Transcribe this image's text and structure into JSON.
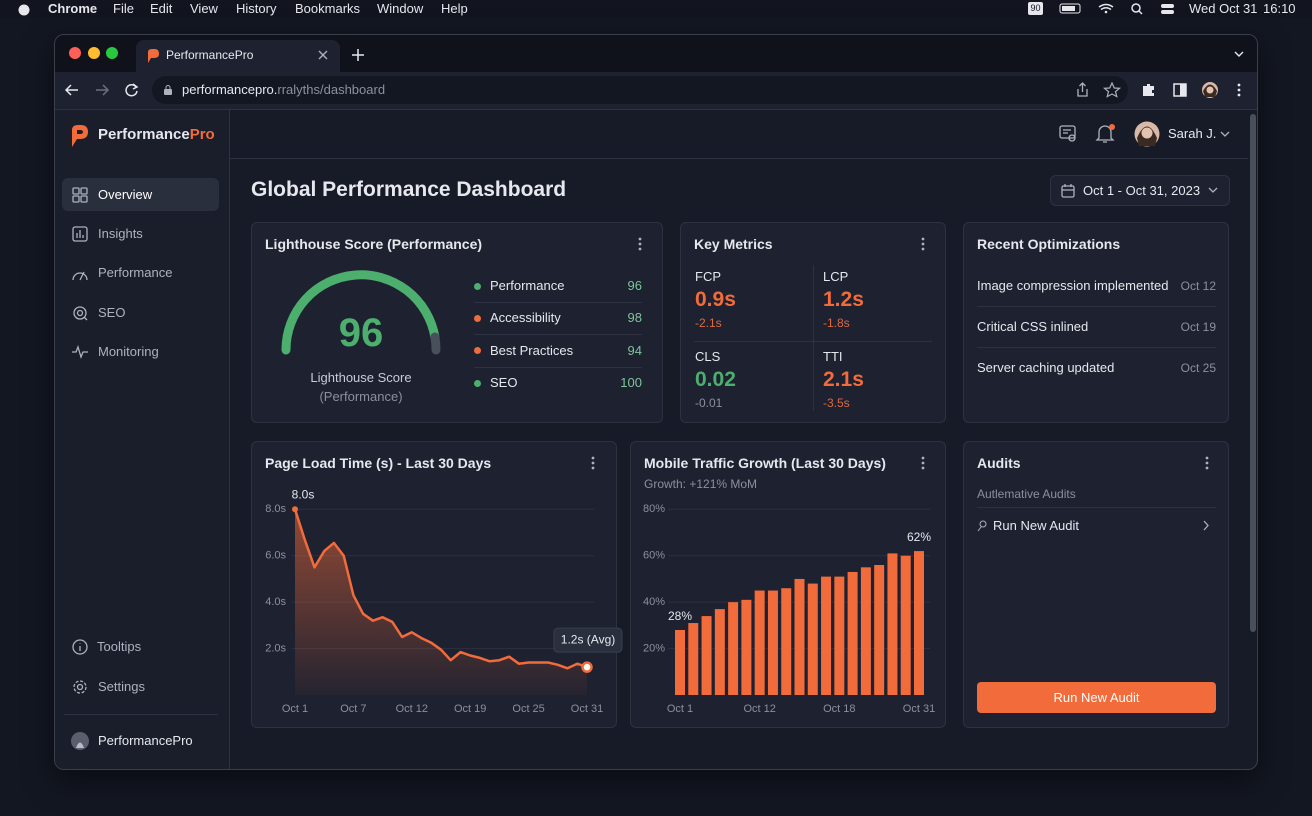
{
  "menu_bar": {
    "app": "Chrome",
    "items": [
      "File",
      "Edit",
      "View",
      "History",
      "Bookmarks",
      "Window",
      "Help"
    ],
    "battery_badge": "90",
    "date": "Wed Oct 31",
    "time": "16:10"
  },
  "browser": {
    "tab_title": "PerformancePro",
    "url_host": "performancepro.",
    "url_path": "rralyths/dashboard"
  },
  "sidebar": {
    "brand_a": "Performance",
    "brand_b": "Pro",
    "nav": [
      "Overview",
      "Insights",
      "Performance",
      "SEO",
      "Monitoring"
    ],
    "bottom_nav": [
      "Tooltips",
      "Settings"
    ],
    "footer": "PerformancePro"
  },
  "header": {
    "user": "Sarah J."
  },
  "page": {
    "title": "Global Performance Dashboard",
    "date_range": "Oct 1 - Oct 31, 2023"
  },
  "lighthouse": {
    "title": "Lighthouse Score (Performance)",
    "score": 96,
    "caption": "Lighthouse Score",
    "caption_sub": "(Performance)",
    "rows": [
      {
        "label": "Performance",
        "value": 96,
        "color": "#4caf6e"
      },
      {
        "label": "Accessibility",
        "value": 98,
        "color": "#f26b3a"
      },
      {
        "label": "Best Practices",
        "value": 94,
        "color": "#f26b3a"
      },
      {
        "label": "SEO",
        "value": 100,
        "color": "#4caf6e"
      }
    ]
  },
  "key_metrics": {
    "title": "Key Metrics",
    "items": [
      {
        "label": "FCP",
        "value": "0.9s",
        "delta": "-2.1s",
        "color": "#f26b3a",
        "delta_color": "#e0693f"
      },
      {
        "label": "LCP",
        "value": "1.2s",
        "delta": "-1.8s",
        "color": "#f26b3a",
        "delta_color": "#e0693f"
      },
      {
        "label": "CLS",
        "value": "0.02",
        "delta": "-0.01",
        "color": "#4caf6e",
        "delta_color": "#8b90a0"
      },
      {
        "label": "TTI",
        "value": "2.1s",
        "delta": "-3.5s",
        "color": "#f26b3a",
        "delta_color": "#e0693f"
      }
    ]
  },
  "optimizations": {
    "title": "Recent Optimizations",
    "items": [
      {
        "text": "Image compression implemented",
        "date": "Oct 12"
      },
      {
        "text": "Critical CSS inlined",
        "date": "Oct 19"
      },
      {
        "text": "Server caching updated",
        "date": "Oct 25"
      }
    ]
  },
  "audits": {
    "title": "Audits",
    "subtitle": "Autlemative Audits",
    "item": "Run New Audit",
    "button": "Run New Audit"
  },
  "chart_data": [
    {
      "type": "line",
      "title": "Page Load Time (s) - Last 30 Days",
      "categories": [
        "Oct 1",
        null,
        null,
        null,
        null,
        null,
        "Oct 7",
        null,
        null,
        null,
        null,
        null,
        "Oct 12",
        null,
        null,
        null,
        null,
        null,
        "Oct 19",
        null,
        null,
        null,
        null,
        null,
        "Oct 25",
        null,
        null,
        null,
        null,
        null,
        "Oct 31"
      ],
      "values": [
        8.0,
        6.7,
        5.5,
        6.2,
        6.55,
        6.0,
        4.3,
        3.5,
        3.2,
        3.35,
        3.15,
        2.5,
        2.7,
        2.45,
        2.25,
        1.95,
        1.5,
        1.85,
        1.7,
        1.6,
        1.45,
        1.5,
        1.65,
        1.35,
        1.4,
        1.4,
        1.4,
        1.3,
        1.15,
        1.35,
        1.2
      ],
      "color": "#f26b3a",
      "ylim": [
        0,
        8.4
      ],
      "yticks": [
        {
          "value": 2,
          "label": "2.0s"
        },
        {
          "value": 4,
          "label": "4.0s"
        },
        {
          "value": 6,
          "label": "6.0s"
        },
        {
          "value": 8,
          "label": "8.0s"
        }
      ],
      "annotations": [
        "8.0s",
        "1.2s (Avg)"
      ],
      "grid": true
    },
    {
      "type": "bar",
      "title": "Mobile Traffic Growth (Last 30 Days)",
      "subtitle": "Growth: +121% MoM",
      "categories": [
        "Oct 1",
        null,
        null,
        null,
        null,
        null,
        "Oct 12",
        null,
        null,
        null,
        null,
        null,
        "Oct 18",
        null,
        null,
        null,
        null,
        null,
        "Oct 31"
      ],
      "values": [
        28,
        31,
        34,
        37,
        40,
        41,
        45,
        45,
        46,
        50,
        48,
        51,
        51,
        53,
        55,
        56,
        61,
        60,
        62
      ],
      "value_labels": [
        "28%",
        null,
        null,
        null,
        null,
        null,
        null,
        null,
        null,
        null,
        null,
        null,
        null,
        null,
        null,
        null,
        null,
        null,
        "62%"
      ],
      "color": "#f26b3a",
      "ylim": [
        0,
        84
      ],
      "yticks": [
        {
          "value": 20,
          "label": "20%"
        },
        {
          "value": 40,
          "label": "40%"
        },
        {
          "value": 60,
          "label": "60%"
        },
        {
          "value": 80,
          "label": "80%"
        }
      ],
      "grid": true
    }
  ]
}
